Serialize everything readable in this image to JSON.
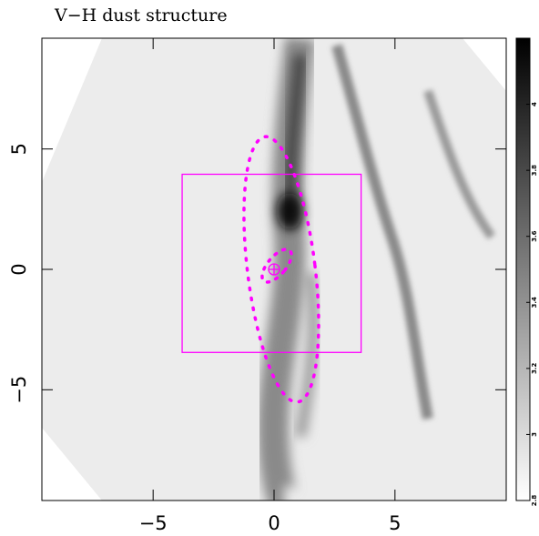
{
  "chart_data": {
    "type": "image",
    "title": "V−H dust structure",
    "xlim": [
      -9.6,
      9.6
    ],
    "ylim": [
      -9.6,
      9.6
    ],
    "xticks": [
      {
        "value": -5,
        "label": "−5"
      },
      0,
      5
    ],
    "yticks": [
      {
        "value": -5,
        "label": "−5"
      },
      0,
      5
    ],
    "clim": [
      2.8,
      4.2
    ],
    "cticks": [
      2.8,
      3,
      3.2,
      3.4,
      3.6,
      3.8,
      4
    ],
    "overlay_color": "#ff00ff",
    "box": {
      "x": [
        -3.8,
        3.6
      ],
      "y": [
        -3.45,
        3.95
      ]
    },
    "ellipse": {
      "cx": 0.3,
      "cy": 0,
      "rx": 1.4,
      "ry": 5.55,
      "angle": -7
    },
    "center": [
      0,
      0
    ]
  }
}
